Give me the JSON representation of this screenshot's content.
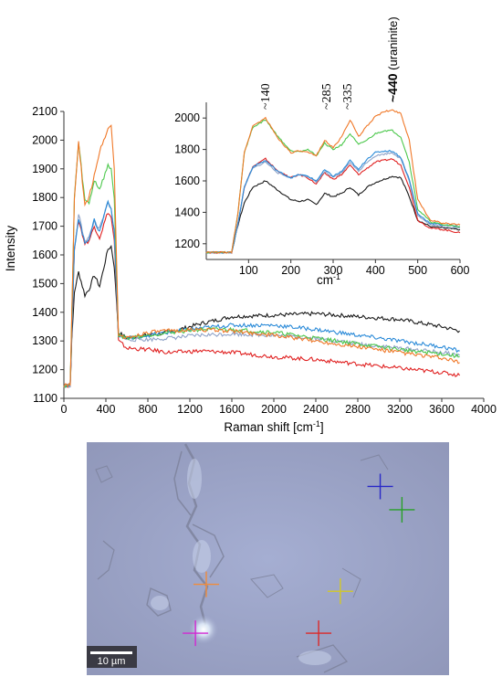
{
  "chart_data": [
    {
      "type": "line",
      "xlabel": "Raman shift [cm",
      "xlabel_sup": "-1",
      "xlabel_tail": "]",
      "ylabel": "Intensity",
      "xlim": [
        0,
        4000
      ],
      "ylim": [
        1100,
        2100
      ],
      "x_ticks": [
        0,
        400,
        800,
        1200,
        1600,
        2000,
        2400,
        2800,
        3200,
        3600,
        4000
      ],
      "y_ticks": [
        1100,
        1200,
        1300,
        1400,
        1500,
        1600,
        1700,
        1800,
        1900,
        2000,
        2100
      ],
      "grid": false,
      "series": [
        {
          "color": "#1a1a1a",
          "x": [
            0,
            60,
            75,
            100,
            140,
            200,
            240,
            290,
            340,
            420,
            450,
            480,
            520,
            600,
            800,
            1000,
            1300,
            1600,
            2000,
            2400,
            2800,
            3200,
            3600,
            3770
          ],
          "values": [
            1145,
            1145,
            1300,
            1470,
            1540,
            1460,
            1480,
            1530,
            1490,
            1620,
            1630,
            1560,
            1330,
            1310,
            1320,
            1330,
            1360,
            1385,
            1390,
            1395,
            1385,
            1375,
            1350,
            1335
          ]
        },
        {
          "color": "#e02020",
          "x": [
            0,
            60,
            75,
            100,
            140,
            200,
            240,
            290,
            340,
            420,
            450,
            480,
            520,
            600,
            800,
            1000,
            1300,
            1600,
            2000,
            2400,
            2800,
            3200,
            3600,
            3770
          ],
          "values": [
            1145,
            1145,
            1330,
            1620,
            1720,
            1640,
            1650,
            1700,
            1660,
            1750,
            1730,
            1650,
            1300,
            1275,
            1270,
            1260,
            1265,
            1260,
            1245,
            1235,
            1220,
            1205,
            1190,
            1180
          ]
        },
        {
          "color": "#8fa3c8",
          "x": [
            0,
            60,
            75,
            100,
            140,
            200,
            240,
            290,
            340,
            420,
            450,
            480,
            520,
            600,
            800,
            1000,
            1300,
            1600,
            2000,
            2400,
            2800,
            3200,
            3600,
            3770
          ],
          "values": [
            1145,
            1145,
            1330,
            1620,
            1740,
            1650,
            1660,
            1720,
            1690,
            1780,
            1760,
            1670,
            1320,
            1305,
            1305,
            1310,
            1320,
            1325,
            1320,
            1310,
            1290,
            1275,
            1260,
            1250
          ]
        },
        {
          "color": "#2a8ad8",
          "x": [
            0,
            60,
            75,
            100,
            140,
            200,
            240,
            290,
            340,
            420,
            450,
            480,
            520,
            600,
            800,
            1000,
            1300,
            1600,
            2000,
            2400,
            2800,
            3200,
            3600,
            3770
          ],
          "values": [
            1145,
            1145,
            1330,
            1620,
            1730,
            1640,
            1660,
            1720,
            1680,
            1790,
            1760,
            1680,
            1320,
            1310,
            1320,
            1330,
            1345,
            1355,
            1355,
            1340,
            1320,
            1300,
            1280,
            1265
          ]
        },
        {
          "color": "#4cc84c",
          "x": [
            0,
            60,
            75,
            100,
            140,
            200,
            240,
            290,
            340,
            420,
            450,
            480,
            520,
            600,
            800,
            1000,
            1300,
            1600,
            2000,
            2400,
            2800,
            3200,
            3600,
            3770
          ],
          "values": [
            1145,
            1145,
            1380,
            1800,
            1990,
            1790,
            1780,
            1860,
            1830,
            1910,
            1900,
            1800,
            1320,
            1310,
            1320,
            1330,
            1340,
            1340,
            1330,
            1310,
            1290,
            1270,
            1255,
            1245
          ]
        },
        {
          "color": "#f07828",
          "x": [
            0,
            60,
            75,
            100,
            140,
            200,
            240,
            290,
            340,
            420,
            450,
            480,
            520,
            600,
            800,
            1000,
            1300,
            1600,
            2000,
            2400,
            2800,
            3200,
            3600,
            3770
          ],
          "values": [
            1145,
            1145,
            1380,
            1800,
            1990,
            1770,
            1800,
            1880,
            1960,
            2040,
            2050,
            1900,
            1320,
            1310,
            1330,
            1335,
            1340,
            1335,
            1320,
            1300,
            1280,
            1260,
            1240,
            1225
          ]
        }
      ]
    },
    {
      "type": "line",
      "xlabel": "cm",
      "xlabel_sup": "-1",
      "xlim": [
        0,
        600
      ],
      "ylim": [
        1100,
        2100
      ],
      "x_ticks": [
        100,
        200,
        300,
        400,
        500,
        600
      ],
      "y_ticks": [
        1200,
        1400,
        1600,
        1800,
        2000
      ],
      "annotations": [
        {
          "text": "~140",
          "x": 140
        },
        {
          "text": "~285",
          "x": 285
        },
        {
          "text": "~335",
          "x": 335
        }
      ],
      "peak_label": {
        "bold": "~440",
        "normal": " (uraninite)",
        "x": 440
      },
      "series": [
        {
          "color": "#1a1a1a",
          "x": [
            0,
            60,
            75,
            90,
            110,
            140,
            170,
            200,
            220,
            240,
            260,
            280,
            300,
            320,
            340,
            360,
            380,
            400,
            420,
            440,
            460,
            480,
            500,
            530,
            560,
            600
          ],
          "values": [
            1145,
            1145,
            1320,
            1460,
            1560,
            1600,
            1540,
            1480,
            1470,
            1480,
            1450,
            1520,
            1500,
            1520,
            1560,
            1510,
            1560,
            1590,
            1610,
            1630,
            1620,
            1500,
            1350,
            1310,
            1300,
            1290
          ]
        },
        {
          "color": "#e02020",
          "x": [
            0,
            60,
            75,
            90,
            110,
            140,
            170,
            200,
            220,
            240,
            260,
            280,
            300,
            320,
            340,
            360,
            380,
            400,
            420,
            440,
            460,
            480,
            500,
            530,
            560,
            600
          ],
          "values": [
            1145,
            1145,
            1330,
            1560,
            1690,
            1740,
            1660,
            1620,
            1640,
            1620,
            1580,
            1650,
            1610,
            1640,
            1700,
            1640,
            1680,
            1720,
            1730,
            1740,
            1700,
            1560,
            1350,
            1300,
            1290,
            1270
          ]
        },
        {
          "color": "#8fa3c8",
          "x": [
            0,
            60,
            75,
            90,
            110,
            140,
            170,
            200,
            220,
            240,
            260,
            280,
            300,
            320,
            340,
            360,
            380,
            400,
            420,
            440,
            460,
            480,
            500,
            530,
            560,
            600
          ],
          "values": [
            1145,
            1145,
            1330,
            1560,
            1680,
            1720,
            1650,
            1620,
            1640,
            1630,
            1590,
            1660,
            1620,
            1650,
            1720,
            1660,
            1720,
            1760,
            1770,
            1780,
            1740,
            1600,
            1380,
            1320,
            1310,
            1300
          ]
        },
        {
          "color": "#2a8ad8",
          "x": [
            0,
            60,
            75,
            90,
            110,
            140,
            170,
            200,
            220,
            240,
            260,
            280,
            300,
            320,
            340,
            360,
            380,
            400,
            420,
            440,
            460,
            480,
            500,
            530,
            560,
            600
          ],
          "values": [
            1145,
            1145,
            1330,
            1560,
            1690,
            1730,
            1660,
            1620,
            1640,
            1630,
            1600,
            1670,
            1630,
            1660,
            1730,
            1670,
            1740,
            1780,
            1790,
            1790,
            1750,
            1610,
            1390,
            1330,
            1320,
            1310
          ]
        },
        {
          "color": "#4cc84c",
          "x": [
            0,
            60,
            75,
            90,
            110,
            140,
            170,
            200,
            220,
            240,
            260,
            280,
            300,
            320,
            340,
            360,
            380,
            400,
            420,
            440,
            460,
            480,
            500,
            530,
            560,
            600
          ],
          "values": [
            1145,
            1145,
            1400,
            1780,
            1940,
            1990,
            1880,
            1790,
            1790,
            1800,
            1760,
            1840,
            1800,
            1830,
            1900,
            1830,
            1860,
            1900,
            1920,
            1920,
            1880,
            1720,
            1420,
            1340,
            1320,
            1310
          ]
        },
        {
          "color": "#f07828",
          "x": [
            0,
            60,
            75,
            90,
            110,
            140,
            170,
            200,
            220,
            240,
            260,
            280,
            300,
            320,
            340,
            360,
            380,
            400,
            420,
            440,
            460,
            480,
            500,
            530,
            560,
            600
          ],
          "values": [
            1145,
            1145,
            1400,
            1780,
            1950,
            2000,
            1870,
            1780,
            1790,
            1780,
            1760,
            1860,
            1810,
            1880,
            1990,
            1880,
            1950,
            2010,
            2040,
            2050,
            2030,
            1860,
            1480,
            1350,
            1330,
            1320
          ]
        }
      ]
    }
  ],
  "micrograph": {
    "scale_bar": "10 µm",
    "markers": [
      {
        "color": "#2828c8",
        "fx": 0.81,
        "fy": 0.19
      },
      {
        "color": "#28a028",
        "fx": 0.87,
        "fy": 0.29
      },
      {
        "color": "#f08c3c",
        "fx": 0.33,
        "fy": 0.61
      },
      {
        "color": "#d2c828",
        "fx": 0.7,
        "fy": 0.64
      },
      {
        "color": "#d228d2",
        "fx": 0.3,
        "fy": 0.82
      },
      {
        "color": "#dc2828",
        "fx": 0.64,
        "fy": 0.82
      }
    ]
  }
}
